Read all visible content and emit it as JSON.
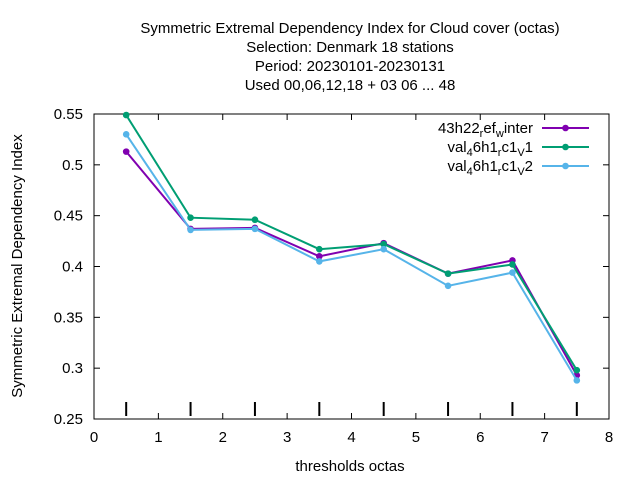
{
  "chart_data": {
    "type": "line",
    "title_lines": [
      "Symmetric Extremal Dependency Index  for Cloud cover (octas)",
      "Selection: Denmark     18 stations",
      "Period: 20230101-20230131",
      "Used  00,06,12,18  + 03 06 ... 48"
    ],
    "xlabel": "thresholds octas",
    "ylabel": "Symmetric Extremal Dependency Index",
    "xlim": [
      0,
      8
    ],
    "ylim": [
      0.25,
      0.55
    ],
    "xticks": [
      0,
      1,
      2,
      3,
      4,
      5,
      6,
      7,
      8
    ],
    "xtick_labels": [
      "0",
      "1",
      "2",
      "3",
      "4",
      "5",
      "6",
      "7",
      "8"
    ],
    "yticks": [
      0.25,
      0.3,
      0.35,
      0.4,
      0.45,
      0.5,
      0.55
    ],
    "ytick_labels": [
      "0.25",
      "0.3",
      "0.35",
      "0.4",
      "0.45",
      "0.5",
      "0.55"
    ],
    "x": [
      0.5,
      1.5,
      2.5,
      3.5,
      4.5,
      5.5,
      6.5,
      7.5
    ],
    "series": [
      {
        "name_parts": [
          {
            "t": "43h22",
            "sub": false
          },
          {
            "t": "r",
            "sub": true
          },
          {
            "t": "ef",
            "sub": false
          },
          {
            "t": "w",
            "sub": true
          },
          {
            "t": "inter",
            "sub": false
          }
        ],
        "color": "#8000b0",
        "values": [
          0.513,
          0.437,
          0.438,
          0.41,
          0.423,
          0.393,
          0.406,
          0.293
        ]
      },
      {
        "name_parts": [
          {
            "t": "val",
            "sub": false
          },
          {
            "t": "4",
            "sub": true
          },
          {
            "t": "6h1",
            "sub": false
          },
          {
            "t": "r",
            "sub": true
          },
          {
            "t": "c1",
            "sub": false
          },
          {
            "t": "V",
            "sub": true
          },
          {
            "t": "1",
            "sub": false
          }
        ],
        "color": "#009e73",
        "values": [
          0.549,
          0.448,
          0.446,
          0.417,
          0.422,
          0.393,
          0.402,
          0.298
        ]
      },
      {
        "name_parts": [
          {
            "t": "val",
            "sub": false
          },
          {
            "t": "4",
            "sub": true
          },
          {
            "t": "6h1",
            "sub": false
          },
          {
            "t": "r",
            "sub": true
          },
          {
            "t": "c1",
            "sub": false
          },
          {
            "t": "V",
            "sub": true
          },
          {
            "t": "2",
            "sub": false
          }
        ],
        "color": "#56b4e9",
        "values": [
          0.53,
          0.436,
          0.437,
          0.405,
          0.417,
          0.381,
          0.394,
          0.288
        ]
      }
    ],
    "grid": false,
    "legend_position": "top-right",
    "threshold_marks_x": [
      0.5,
      1.5,
      2.5,
      3.5,
      4.5,
      5.5,
      6.5,
      7.5
    ]
  }
}
